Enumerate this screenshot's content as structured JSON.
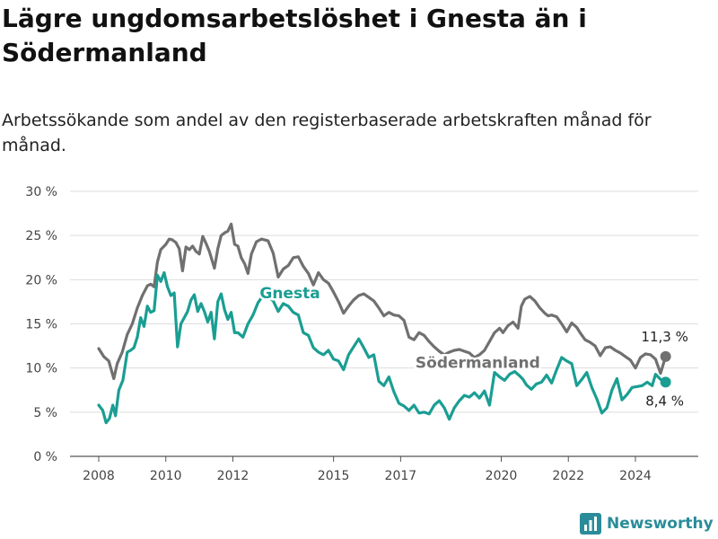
{
  "header": {
    "title": "Lägre ungdomsarbetslöshet i Gnesta än i Södermanland",
    "subtitle": "Arbetssökande som andel av den registerbaserade arbetskraften månad för månad."
  },
  "brand": {
    "name": "Newsworthy"
  },
  "chart_data": {
    "type": "line",
    "title": "Lägre ungdomsarbetslöshet i Gnesta än i Södermanland",
    "subtitle": "Arbetssökande som andel av den registerbaserade arbetskraften månad för månad.",
    "xlabel": "",
    "ylabel": "",
    "xlim": [
      2007.5,
      2025.1
    ],
    "ylim": [
      0,
      30
    ],
    "y_ticks": [
      0,
      5,
      10,
      15,
      20,
      25,
      30
    ],
    "y_tick_labels": [
      "0 %",
      "5 %",
      "10 %",
      "15 %",
      "20 %",
      "25 %",
      "30 %"
    ],
    "x_ticks": [
      2008,
      2010,
      2012,
      2015,
      2017,
      2020,
      2022,
      2024
    ],
    "x_tick_labels": [
      "2008",
      "2010",
      "2012",
      "2015",
      "2017",
      "2020",
      "2022",
      "2024"
    ],
    "grid": true,
    "colors": {
      "Södermanland": "#707070",
      "Gnesta": "#1a9e93"
    },
    "series": [
      {
        "name": "Södermanland",
        "x": [
          2008.0,
          2008.15,
          2008.3,
          2008.45,
          2008.55,
          2008.7,
          2008.85,
          2009.0,
          2009.15,
          2009.3,
          2009.45,
          2009.55,
          2009.65,
          2009.75,
          2009.85,
          2010.0,
          2010.1,
          2010.2,
          2010.3,
          2010.4,
          2010.5,
          2010.6,
          2010.7,
          2010.8,
          2010.9,
          2011.0,
          2011.1,
          2011.2,
          2011.3,
          2011.45,
          2011.55,
          2011.65,
          2011.75,
          2011.85,
          2011.95,
          2012.05,
          2012.15,
          2012.25,
          2012.35,
          2012.45,
          2012.55,
          2012.7,
          2012.85,
          2012.95,
          2013.05,
          2013.2,
          2013.35,
          2013.5,
          2013.65,
          2013.8,
          2013.95,
          2014.1,
          2014.25,
          2014.4,
          2014.55,
          2014.7,
          2014.85,
          2015.0,
          2015.15,
          2015.3,
          2015.45,
          2015.6,
          2015.75,
          2015.9,
          2016.05,
          2016.2,
          2016.35,
          2016.5,
          2016.65,
          2016.8,
          2016.95,
          2017.1,
          2017.25,
          2017.4,
          2017.55,
          2017.7,
          2017.85,
          2018.0,
          2018.15,
          2018.3,
          2018.45,
          2018.6,
          2018.75,
          2018.9,
          2019.05,
          2019.2,
          2019.35,
          2019.5,
          2019.65,
          2019.8,
          2019.95,
          2020.05,
          2020.2,
          2020.35,
          2020.5,
          2020.6,
          2020.7,
          2020.85,
          2021.0,
          2021.15,
          2021.3,
          2021.4,
          2021.5,
          2021.65,
          2021.8,
          2021.95,
          2022.1,
          2022.25,
          2022.35,
          2022.5,
          2022.65,
          2022.8,
          2022.95,
          2023.1,
          2023.25,
          2023.4,
          2023.55,
          2023.7,
          2023.85,
          2024.0,
          2024.15,
          2024.3,
          2024.45,
          2024.6,
          2024.75,
          2024.9
        ],
        "y": [
          12.2,
          11.3,
          10.8,
          8.8,
          10.5,
          11.8,
          13.8,
          15.0,
          16.8,
          18.2,
          19.3,
          19.5,
          19.2,
          22.0,
          23.4,
          24.0,
          24.6,
          24.5,
          24.2,
          23.5,
          21.0,
          23.7,
          23.4,
          23.8,
          23.2,
          22.9,
          24.9,
          24.1,
          23.2,
          21.3,
          23.5,
          25.0,
          25.3,
          25.5,
          26.3,
          24.0,
          23.8,
          22.5,
          21.8,
          20.7,
          22.9,
          24.3,
          24.6,
          24.5,
          24.4,
          23.0,
          20.3,
          21.2,
          21.6,
          22.5,
          22.6,
          21.5,
          20.7,
          19.4,
          20.8,
          20.0,
          19.6,
          18.6,
          17.5,
          16.2,
          17.0,
          17.7,
          18.2,
          18.4,
          18.0,
          17.6,
          16.8,
          15.9,
          16.3,
          16.0,
          15.9,
          15.4,
          13.5,
          13.2,
          14.0,
          13.7,
          13.0,
          12.4,
          11.9,
          11.5,
          11.8,
          12.0,
          12.1,
          11.9,
          11.7,
          11.2,
          11.5,
          12.0,
          13.0,
          14.0,
          14.5,
          14.0,
          14.8,
          15.2,
          14.5,
          17.0,
          17.8,
          18.1,
          17.6,
          16.8,
          16.2,
          15.9,
          16.0,
          15.8,
          15.0,
          14.1,
          15.1,
          14.6,
          14.0,
          13.2,
          12.9,
          12.5,
          11.4,
          12.3,
          12.4,
          12.0,
          11.7,
          11.3,
          10.9,
          10.0,
          11.2,
          11.6,
          11.5,
          11.0,
          9.4,
          11.3
        ],
        "end_label": "11,3 %"
      },
      {
        "name": "Gnesta",
        "x": [
          2008.0,
          2008.12,
          2008.22,
          2008.32,
          2008.42,
          2008.5,
          2008.6,
          2008.72,
          2008.85,
          2008.95,
          2009.05,
          2009.15,
          2009.25,
          2009.35,
          2009.45,
          2009.55,
          2009.65,
          2009.75,
          2009.85,
          2009.95,
          2010.05,
          2010.15,
          2010.25,
          2010.35,
          2010.45,
          2010.55,
          2010.65,
          2010.75,
          2010.85,
          2010.95,
          2011.05,
          2011.15,
          2011.25,
          2011.35,
          2011.45,
          2011.55,
          2011.65,
          2011.75,
          2011.85,
          2011.95,
          2012.05,
          2012.15,
          2012.3,
          2012.45,
          2012.6,
          2012.75,
          2012.9,
          2013.05,
          2013.2,
          2013.35,
          2013.5,
          2013.65,
          2013.8,
          2013.95,
          2014.1,
          2014.25,
          2014.4,
          2014.55,
          2014.7,
          2014.85,
          2015.0,
          2015.15,
          2015.3,
          2015.45,
          2015.6,
          2015.75,
          2015.9,
          2016.05,
          2016.2,
          2016.35,
          2016.5,
          2016.65,
          2016.8,
          2016.95,
          2017.1,
          2017.25,
          2017.4,
          2017.55,
          2017.7,
          2017.85,
          2018.0,
          2018.15,
          2018.3,
          2018.45,
          2018.6,
          2018.75,
          2018.9,
          2019.05,
          2019.2,
          2019.35,
          2019.5,
          2019.65,
          2019.8,
          2019.95,
          2020.1,
          2020.25,
          2020.4,
          2020.55,
          2020.65,
          2020.75,
          2020.9,
          2021.05,
          2021.2,
          2021.35,
          2021.5,
          2021.65,
          2021.8,
          2021.95,
          2022.1,
          2022.25,
          2022.4,
          2022.55,
          2022.7,
          2022.85,
          2023.0,
          2023.15,
          2023.3,
          2023.45,
          2023.6,
          2023.75,
          2023.9,
          2024.05,
          2024.2,
          2024.35,
          2024.5,
          2024.6,
          2024.75,
          2024.9
        ],
        "y": [
          5.8,
          5.2,
          3.8,
          4.3,
          5.8,
          4.6,
          7.5,
          8.6,
          11.8,
          12.0,
          12.3,
          13.5,
          15.7,
          14.7,
          17.0,
          16.3,
          16.5,
          20.5,
          19.8,
          20.8,
          19.2,
          18.2,
          18.5,
          12.4,
          15.0,
          15.7,
          16.4,
          17.7,
          18.3,
          16.4,
          17.3,
          16.4,
          15.2,
          16.3,
          13.3,
          17.5,
          18.4,
          16.6,
          15.5,
          16.3,
          14.0,
          14.0,
          13.5,
          15.0,
          16.0,
          17.4,
          18.2,
          18.1,
          17.6,
          16.4,
          17.3,
          17.0,
          16.3,
          16.0,
          14.0,
          13.7,
          12.3,
          11.8,
          11.5,
          12.0,
          11.0,
          10.8,
          9.8,
          11.5,
          12.4,
          13.3,
          12.3,
          11.2,
          11.5,
          8.5,
          8.0,
          9.0,
          7.3,
          6.0,
          5.7,
          5.2,
          5.8,
          4.9,
          5.0,
          4.8,
          5.8,
          6.3,
          5.5,
          4.2,
          5.5,
          6.3,
          6.9,
          6.7,
          7.2,
          6.6,
          7.4,
          5.8,
          9.5,
          9.0,
          8.6,
          9.3,
          9.6,
          9.1,
          8.7,
          8.1,
          7.6,
          8.2,
          8.4,
          9.2,
          8.3,
          9.8,
          11.2,
          10.8,
          10.5,
          8.0,
          8.7,
          9.5,
          7.8,
          6.5,
          4.9,
          5.5,
          7.5,
          8.8,
          6.4,
          7.0,
          7.8,
          7.9,
          8.0,
          8.4,
          8.0,
          9.3,
          8.7,
          8.4
        ],
        "end_label": "8,4 %"
      }
    ]
  }
}
